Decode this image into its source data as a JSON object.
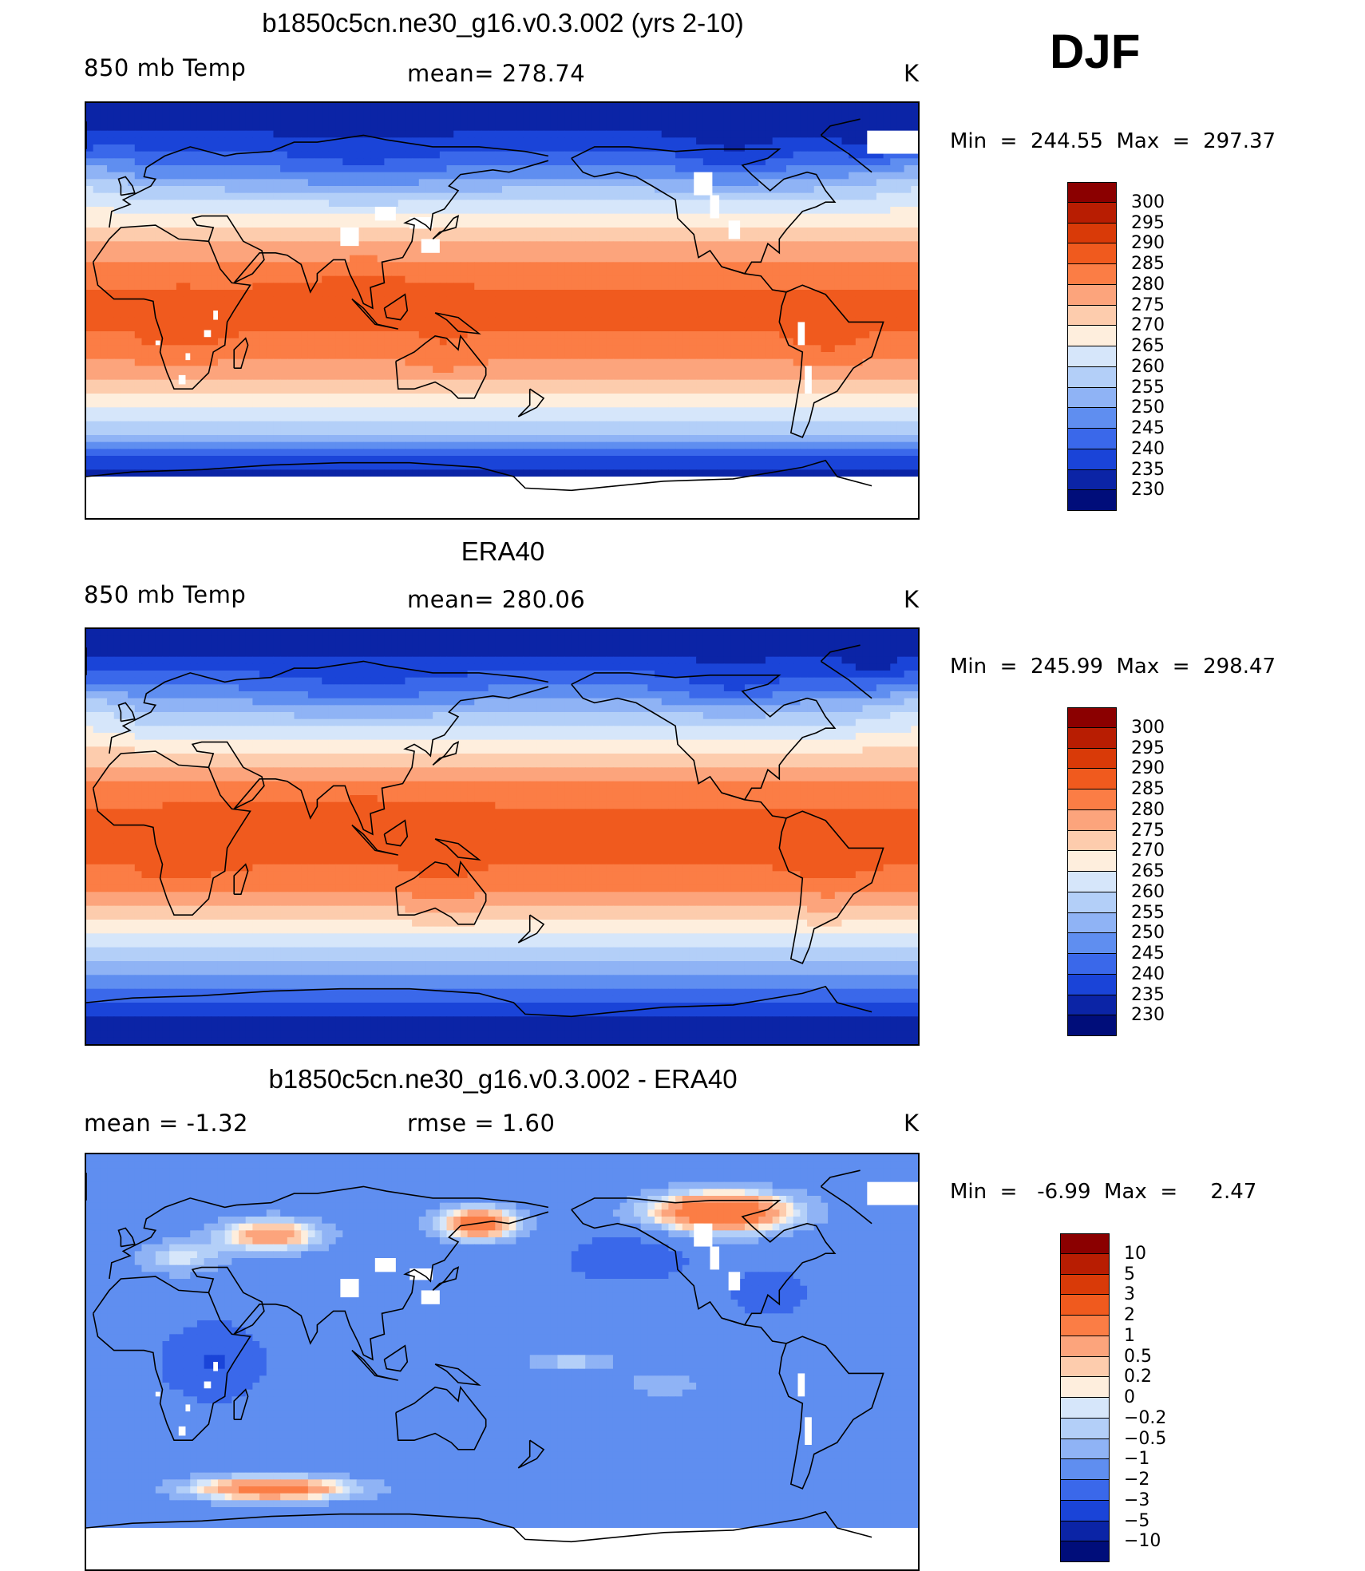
{
  "season": "DJF",
  "panels": [
    {
      "id": "model",
      "title": "b1850c5cn.ne30_g16.v0.3.002 (yrs 2-10)",
      "left_label": "850 mb Temp",
      "center_label": "mean= 278.74",
      "units": "K",
      "minmax": "Min  =  244.55  Max  =  297.37",
      "colorbar": {
        "colors": [
          "#8b0000",
          "#b81d02",
          "#d93a08",
          "#f05a1e",
          "#fb7d45",
          "#fca47c",
          "#fdccad",
          "#feeedd",
          "#d6e6fa",
          "#b3cff8",
          "#8fb3f5",
          "#5f8ef0",
          "#3a68ea",
          "#1a44d8",
          "#0b24a6",
          "#000d7a"
        ],
        "labels": [
          "300",
          "295",
          "290",
          "285",
          "280",
          "275",
          "270",
          "265",
          "260",
          "255",
          "250",
          "245",
          "240",
          "235",
          "230"
        ]
      },
      "field": "abs",
      "white_patches": [
        [
          90,
          32,
          8,
          8
        ],
        [
          105,
          42,
          9,
          6
        ],
        [
          120,
          38,
          10,
          5
        ],
        [
          125,
          28,
          8,
          6
        ],
        [
          35,
          -2,
          2,
          4
        ],
        [
          31,
          -10,
          3,
          3
        ],
        [
          23,
          -20,
          2,
          3
        ],
        [
          20,
          -30,
          3,
          4
        ],
        [
          10,
          -14,
          2,
          2
        ],
        [
          243,
          55,
          8,
          10
        ],
        [
          250,
          45,
          4,
          10
        ],
        [
          258,
          35,
          5,
          8
        ],
        [
          288,
          -10,
          3,
          10
        ],
        [
          291,
          -30,
          3,
          12
        ],
        [
          318,
          73,
          22,
          10
        ]
      ]
    },
    {
      "id": "obs",
      "title": "ERA40",
      "left_label": "850 mb Temp",
      "center_label": "mean= 280.06",
      "units": "K",
      "minmax": "Min  =  245.99  Max  =  298.47",
      "colorbar": {
        "colors": [
          "#8b0000",
          "#b81d02",
          "#d93a08",
          "#f05a1e",
          "#fb7d45",
          "#fca47c",
          "#fdccad",
          "#feeedd",
          "#d6e6fa",
          "#b3cff8",
          "#8fb3f5",
          "#5f8ef0",
          "#3a68ea",
          "#1a44d8",
          "#0b24a6",
          "#000d7a"
        ],
        "labels": [
          "300",
          "295",
          "290",
          "285",
          "280",
          "275",
          "270",
          "265",
          "260",
          "255",
          "250",
          "245",
          "240",
          "235",
          "230"
        ]
      },
      "field": "abs_obs",
      "white_patches": []
    },
    {
      "id": "diff",
      "title": "b1850c5cn.ne30_g16.v0.3.002 - ERA40",
      "left_label": "mean =    -1.32",
      "center_label": "rmse =     1.60",
      "units": "K",
      "minmax": "Min  =   -6.99  Max  =     2.47",
      "colorbar": {
        "colors": [
          "#8b0000",
          "#b81d02",
          "#d93a08",
          "#f05a1e",
          "#fb7d45",
          "#fca47c",
          "#fdccad",
          "#feeedd",
          "#d6e6fa",
          "#b3cff8",
          "#8fb3f5",
          "#5f8ef0",
          "#3a68ea",
          "#1a44d8",
          "#0b24a6",
          "#000d7a"
        ],
        "labels": [
          "10",
          "5",
          "3",
          "2",
          "1",
          "0.5",
          "0.2",
          "0",
          "-0.2",
          "-0.5",
          "-1",
          "-2",
          "-3",
          "-5",
          "-10"
        ]
      },
      "field": "diff",
      "white_patches": [
        [
          90,
          32,
          8,
          8
        ],
        [
          105,
          42,
          9,
          6
        ],
        [
          120,
          38,
          10,
          5
        ],
        [
          125,
          28,
          8,
          6
        ],
        [
          35,
          -2,
          2,
          4
        ],
        [
          31,
          -10,
          3,
          3
        ],
        [
          23,
          -20,
          2,
          3
        ],
        [
          20,
          -30,
          3,
          4
        ],
        [
          10,
          -14,
          2,
          2
        ],
        [
          243,
          55,
          8,
          10
        ],
        [
          250,
          45,
          4,
          10
        ],
        [
          258,
          35,
          5,
          8
        ],
        [
          288,
          -10,
          3,
          10
        ],
        [
          291,
          -30,
          3,
          12
        ],
        [
          318,
          73,
          22,
          10
        ]
      ]
    }
  ],
  "palette_name": "blue-white-red",
  "grid": "off"
}
